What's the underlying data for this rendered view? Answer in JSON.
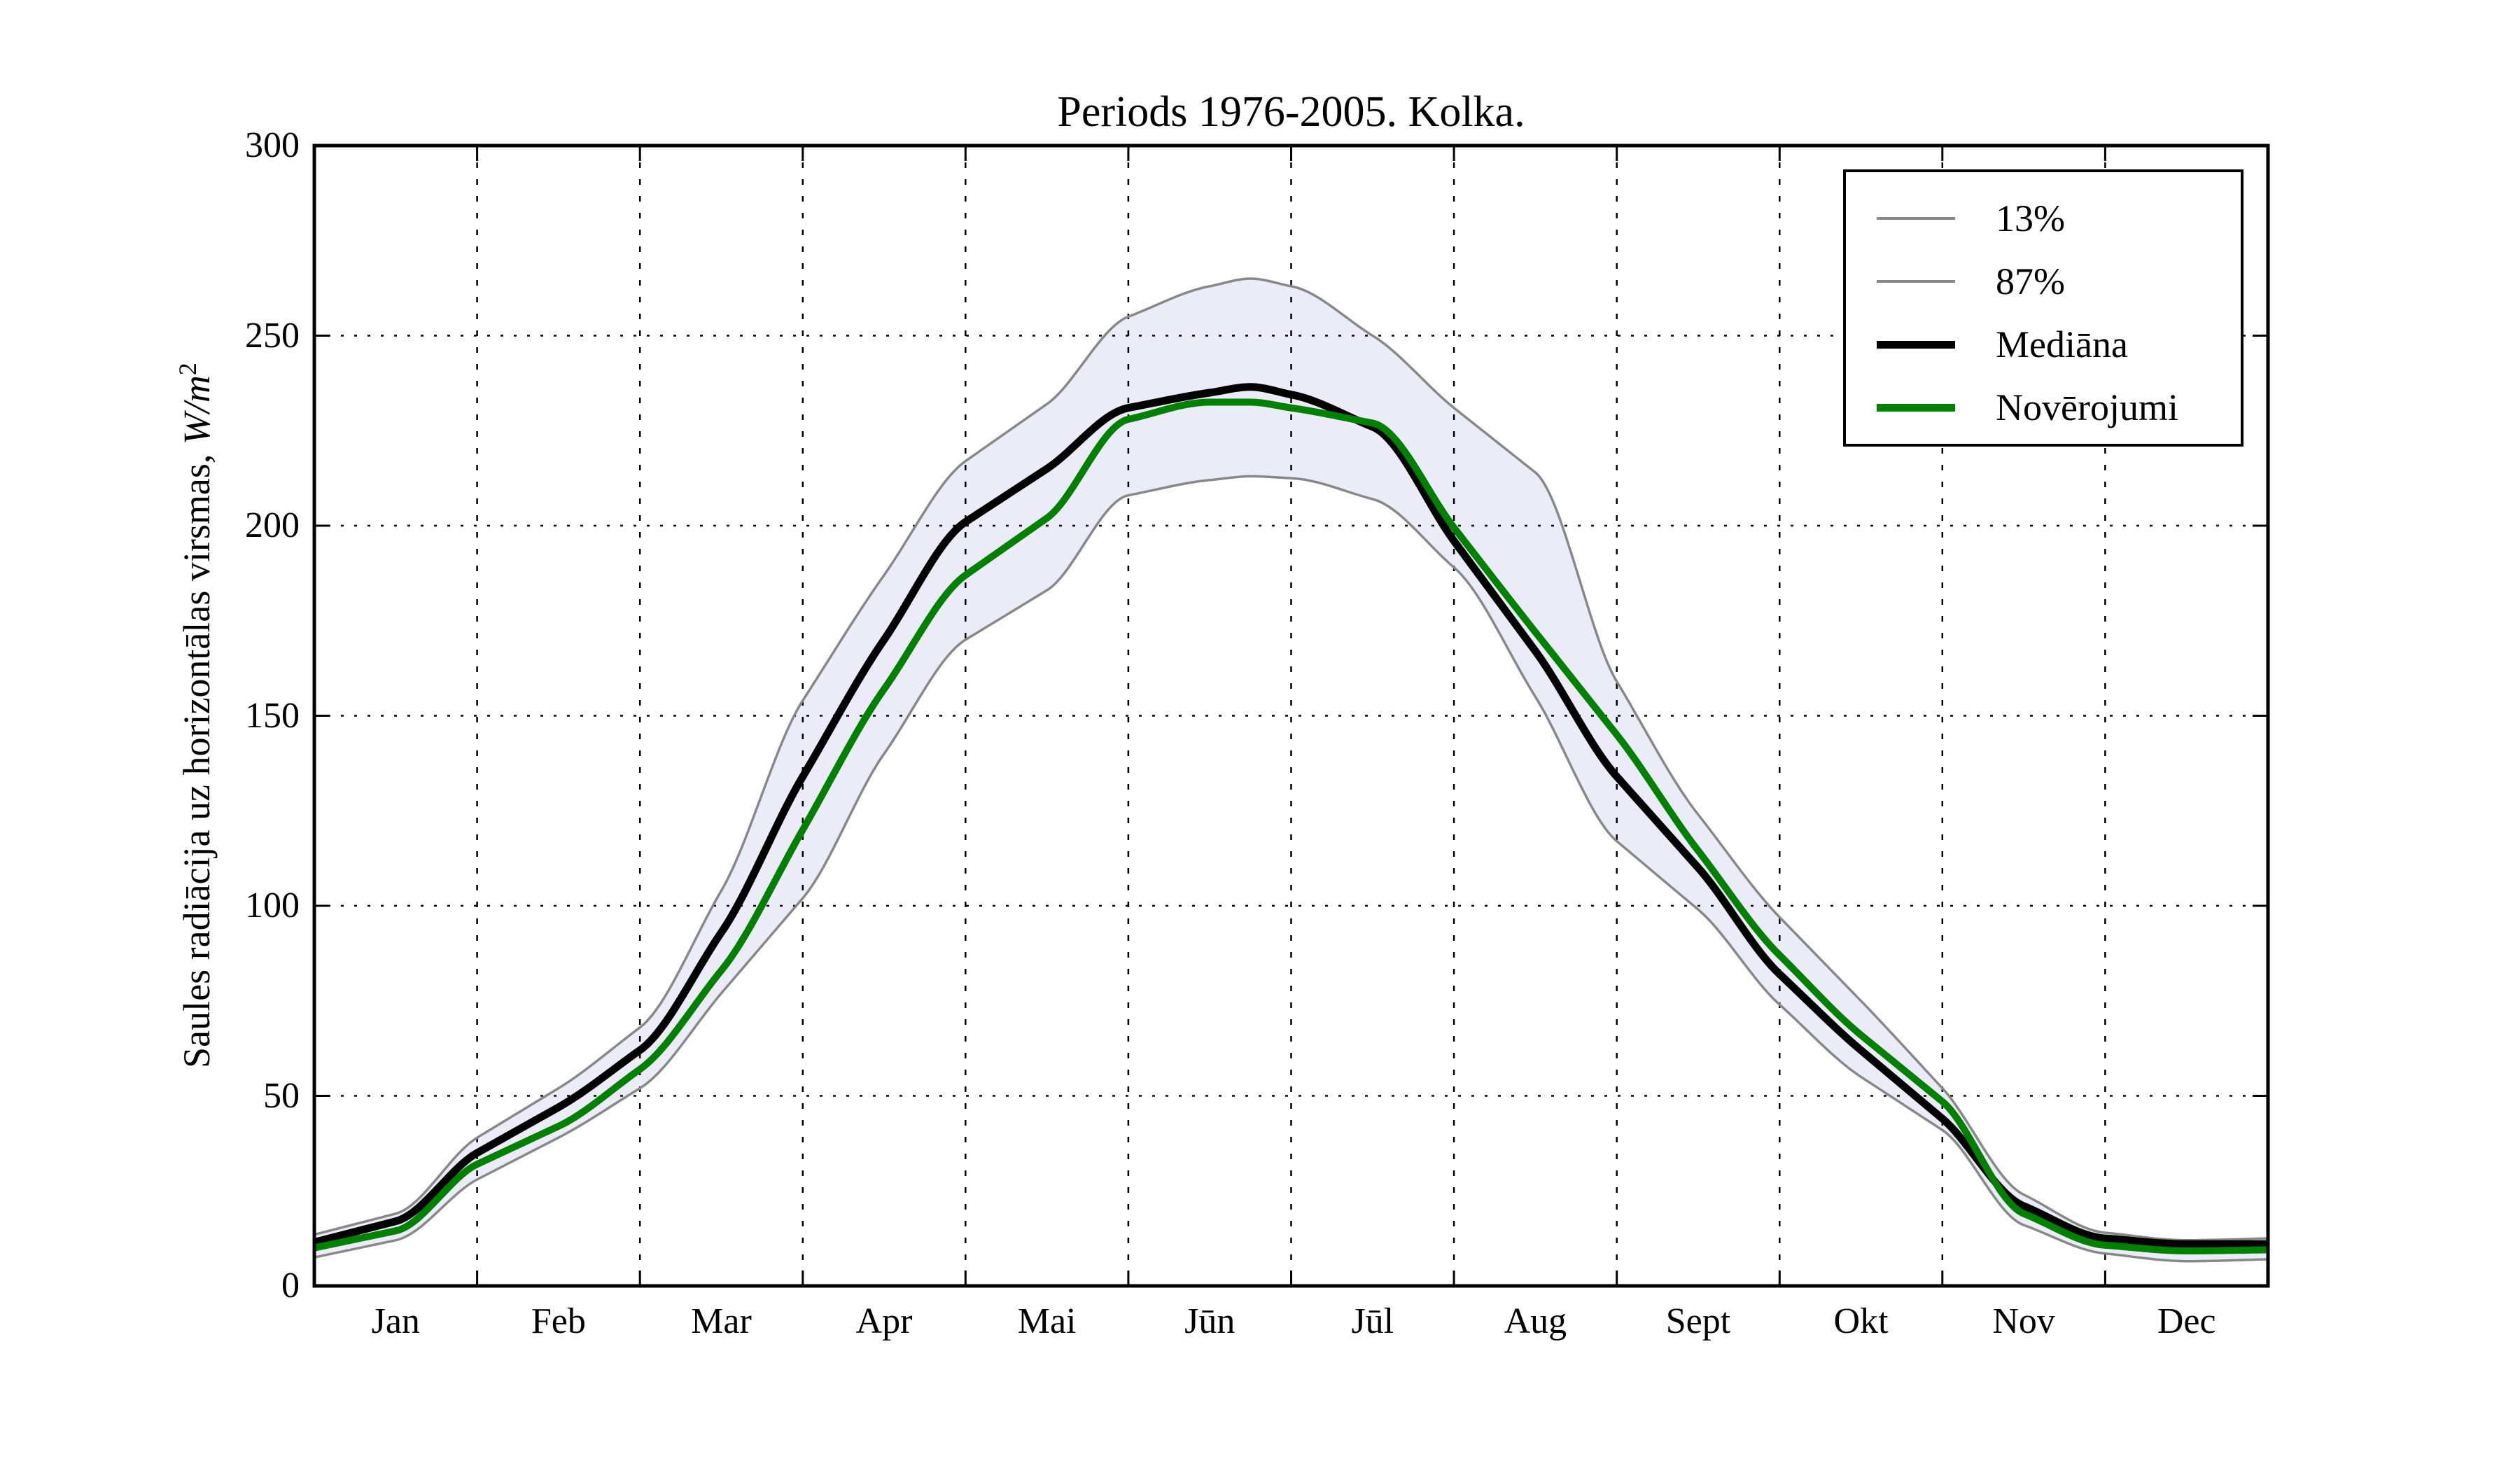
{
  "title": "Periods 1976-2005. Kolka.",
  "axes": {
    "ylabel_prefix": "Saules radiācija uz horizontālas virsmas, ",
    "ylabel_math": "W/m",
    "ylabel_sup": "2",
    "yticks": [
      0,
      50,
      100,
      150,
      200,
      250,
      300
    ],
    "months": [
      "Jan",
      "Feb",
      "Mar",
      "Apr",
      "Mai",
      "Jūn",
      "Jūl",
      "Aug",
      "Sept",
      "Okt",
      "Nov",
      "Dec"
    ]
  },
  "legend": {
    "entries": [
      {
        "label": "13%",
        "color": "#888888",
        "style": "thin"
      },
      {
        "label": "87%",
        "color": "#888888",
        "style": "thin"
      },
      {
        "label": "Mediāna",
        "color": "#000000",
        "style": "thick"
      },
      {
        "label": "Novērojumi",
        "color": "#008000",
        "style": "thick"
      }
    ],
    "position": "upper right"
  },
  "colors": {
    "median": "#000000",
    "observations": "#008000",
    "percentile_lines": "#888888",
    "band_fill": "#ebecf8",
    "grid": "#000000",
    "spines": "#000000"
  },
  "chart_data": {
    "type": "line",
    "title": "Periods 1976-2005. Kolka.",
    "xlabel": "",
    "ylabel": "Saules radiācija uz horizontālas virsmas, W/m^2",
    "ylim": [
      0,
      300
    ],
    "grid": true,
    "legend_position": "upper right",
    "x_unit": "month position, 0 = Jan 1, 12 = Dec 31",
    "x": [
      0,
      0.5,
      1,
      1.5,
      2,
      2.5,
      3,
      3.5,
      4,
      4.5,
      5,
      5.5,
      5.75,
      6,
      6.5,
      7,
      7.5,
      8,
      8.5,
      9,
      9.5,
      10,
      10.5,
      11,
      11.5,
      12
    ],
    "band_between": [
      "13%",
      "87%"
    ],
    "series": [
      {
        "name": "13%",
        "role": "lower-percentile",
        "color": "#888888",
        "width": "thin",
        "values": [
          7.5,
          12,
          28,
          39,
          52,
          77,
          102,
          140,
          170,
          183,
          208,
          212,
          213,
          212.5,
          207,
          189,
          155,
          117,
          99,
          74,
          55,
          41,
          16,
          8.5,
          6.5,
          7
        ]
      },
      {
        "name": "87%",
        "role": "upper-percentile",
        "color": "#888888",
        "width": "thin",
        "values": [
          13.5,
          19,
          39,
          52,
          68,
          104,
          154,
          187,
          217,
          232,
          255,
          263,
          265,
          263,
          250,
          231,
          214,
          159,
          124,
          97,
          75,
          52,
          24,
          14,
          12,
          12.5
        ]
      },
      {
        "name": "Mediāna",
        "role": "median",
        "color": "#000000",
        "width": "thick",
        "values": [
          11.5,
          17,
          35,
          47,
          62,
          93,
          134,
          170,
          201,
          215,
          231,
          235,
          236.5,
          234.5,
          226,
          196,
          167,
          134,
          110,
          82,
          62,
          44,
          21,
          12.5,
          11,
          11
        ]
      },
      {
        "name": "Novērojumi",
        "role": "observations",
        "color": "#008000",
        "width": "thick",
        "values": [
          10,
          14.5,
          32,
          42,
          57,
          83,
          120,
          157,
          187,
          202,
          228,
          232.5,
          232.5,
          231,
          227,
          199.5,
          172,
          145,
          114.5,
          87,
          66,
          48.5,
          19,
          10.7,
          9.2,
          9.5
        ]
      }
    ]
  }
}
